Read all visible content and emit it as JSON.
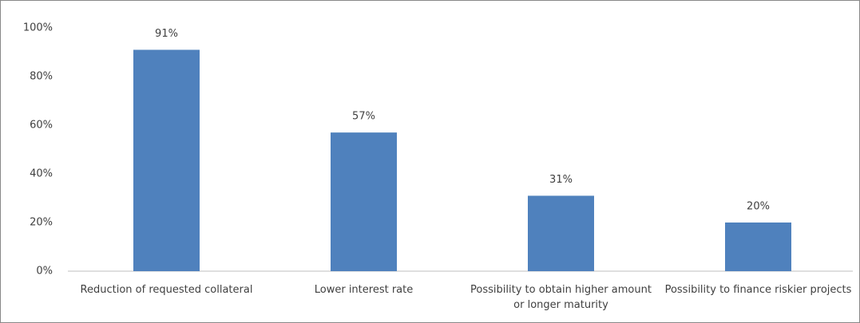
{
  "chart_data": {
    "type": "bar",
    "categories": [
      "Reduction of requested collateral",
      "Lower interest rate",
      "Possibility to obtain higher amount or longer maturity",
      "Possibility to finance riskier projects"
    ],
    "values": [
      91,
      57,
      31,
      20
    ],
    "value_labels": [
      "91%",
      "57%",
      "31%",
      "20%"
    ],
    "color": "#4f81bd",
    "ylim": [
      0,
      100
    ],
    "yticks": [
      {
        "value": 0,
        "label": "0%"
      },
      {
        "value": 20,
        "label": "20%"
      },
      {
        "value": 40,
        "label": "40%"
      },
      {
        "value": 60,
        "label": "60%"
      },
      {
        "value": 80,
        "label": "80%"
      },
      {
        "value": 100,
        "label": "100%"
      }
    ],
    "grid": false
  }
}
